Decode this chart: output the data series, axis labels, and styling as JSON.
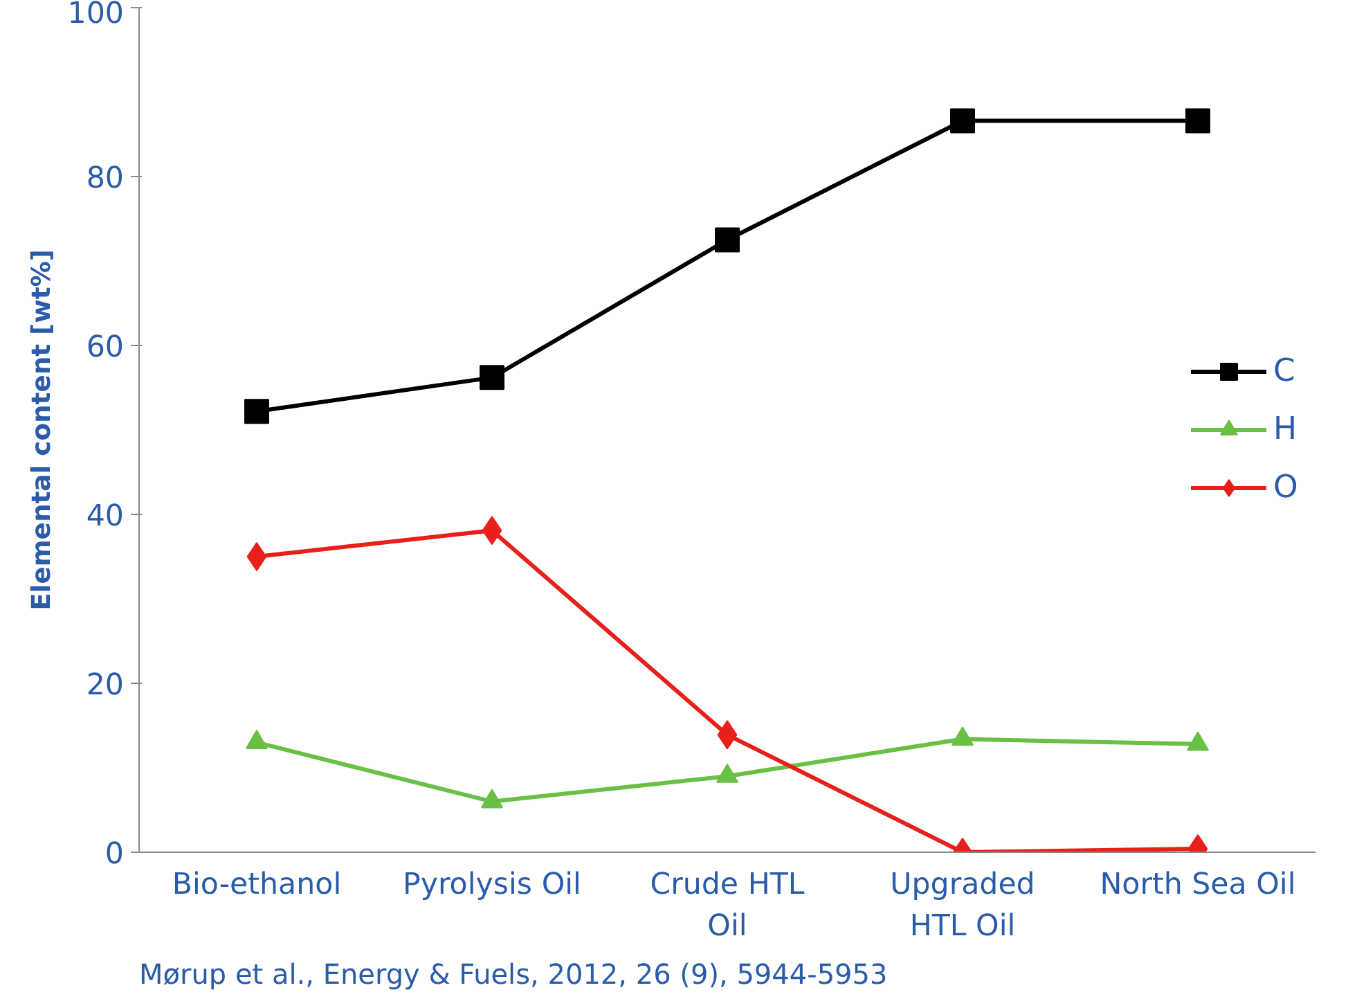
{
  "chart_data": {
    "type": "line",
    "ylabel": "Elemental content [wt%]",
    "categories": [
      "Bio-ethanol",
      "Pyrolysis Oil",
      "Crude HTL\nOil",
      "Upgraded\nHTL Oil",
      "North Sea Oil"
    ],
    "series": [
      {
        "name": "C",
        "color": "#000000",
        "marker": "square",
        "values": [
          52.2,
          56.2,
          72.5,
          86.6,
          86.6
        ]
      },
      {
        "name": "H",
        "color": "#6abf45",
        "marker": "triangle",
        "values": [
          13.0,
          6.0,
          9.0,
          13.4,
          12.8
        ]
      },
      {
        "name": "O",
        "color": "#e8201c",
        "marker": "diamond",
        "values": [
          35.0,
          38.1,
          13.9,
          0.0,
          0.4
        ]
      }
    ],
    "ylim": [
      0,
      100
    ],
    "yticks": [
      0,
      20,
      40,
      60,
      80,
      100
    ],
    "grid": false,
    "legend": "right",
    "line_style": "solid",
    "annotations": [
      "Mørup et al., Energy & Fuels, 2012, 26 (9), 5944-5953"
    ]
  }
}
